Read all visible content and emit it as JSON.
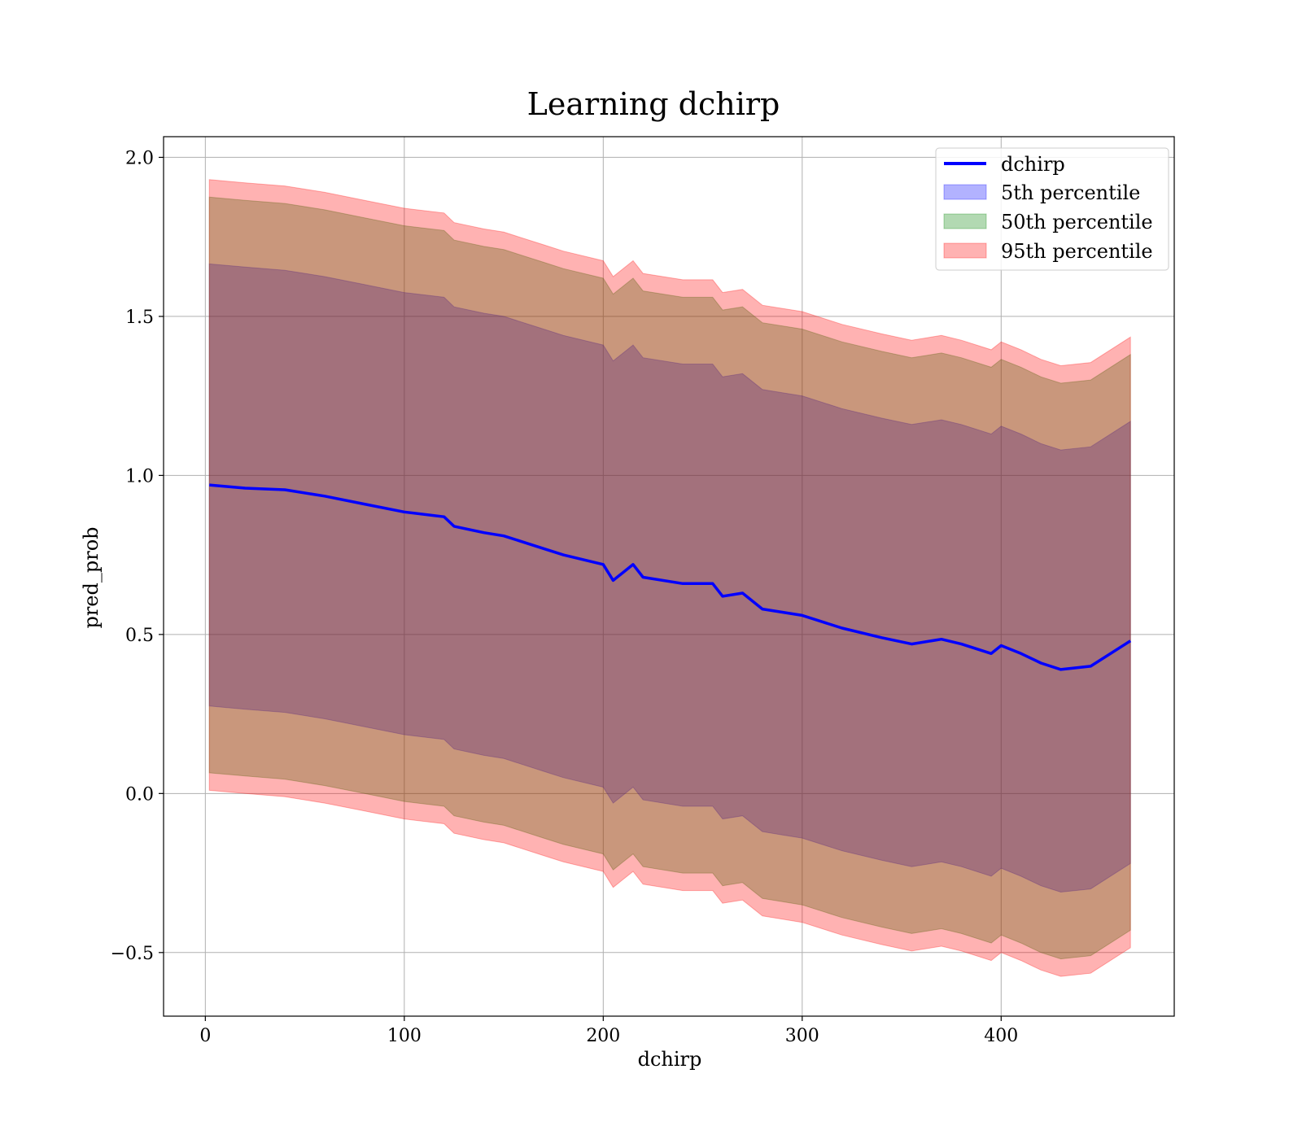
{
  "chart_data": {
    "type": "line",
    "title": "Learning dchirp",
    "xlabel": "dchirp",
    "ylabel": "pred_prob",
    "xlim": [
      -21,
      487
    ],
    "ylim": [
      -0.7,
      2.065
    ],
    "xticks": [
      0,
      100,
      200,
      300,
      400
    ],
    "yticks": [
      -0.5,
      0.0,
      0.5,
      1.0,
      1.5,
      2.0
    ],
    "ytick_labels": [
      "−0.5",
      "0.0",
      "0.5",
      "1.0",
      "1.5",
      "2.0"
    ],
    "grid": true,
    "legend": {
      "position": "top-right",
      "entries": [
        "dchirp",
        "5th percentile",
        "50th percentile",
        "95th percentile"
      ]
    },
    "x": [
      2,
      20,
      40,
      60,
      80,
      100,
      120,
      125,
      140,
      150,
      170,
      180,
      200,
      205,
      215,
      220,
      240,
      255,
      260,
      270,
      280,
      290,
      300,
      320,
      340,
      355,
      370,
      380,
      395,
      400,
      410,
      420,
      430,
      445,
      465
    ],
    "series": [
      {
        "name": "dchirp",
        "color": "#0000ff",
        "values": [
          0.97,
          0.96,
          0.955,
          0.935,
          0.91,
          0.885,
          0.87,
          0.84,
          0.82,
          0.81,
          0.77,
          0.75,
          0.72,
          0.67,
          0.72,
          0.68,
          0.66,
          0.66,
          0.62,
          0.63,
          0.58,
          0.57,
          0.56,
          0.52,
          0.49,
          0.47,
          0.485,
          0.47,
          0.44,
          0.465,
          0.44,
          0.41,
          0.39,
          0.4,
          0.48
        ]
      },
      {
        "name": "5th percentile",
        "color": "#0000ff",
        "lower": [
          0.275,
          0.265,
          0.255,
          0.235,
          0.21,
          0.185,
          0.17,
          0.14,
          0.12,
          0.11,
          0.07,
          0.05,
          0.02,
          -0.03,
          0.02,
          -0.02,
          -0.04,
          -0.04,
          -0.08,
          -0.07,
          -0.12,
          -0.13,
          -0.14,
          -0.18,
          -0.21,
          -0.23,
          -0.215,
          -0.23,
          -0.26,
          -0.235,
          -0.26,
          -0.29,
          -0.31,
          -0.3,
          -0.22
        ],
        "upper": [
          1.665,
          1.655,
          1.645,
          1.625,
          1.6,
          1.575,
          1.56,
          1.53,
          1.51,
          1.5,
          1.46,
          1.44,
          1.41,
          1.36,
          1.41,
          1.37,
          1.35,
          1.35,
          1.31,
          1.32,
          1.27,
          1.26,
          1.25,
          1.21,
          1.18,
          1.16,
          1.175,
          1.16,
          1.13,
          1.155,
          1.13,
          1.1,
          1.08,
          1.09,
          1.17
        ]
      },
      {
        "name": "50th percentile",
        "color": "#008000",
        "lower": [
          0.065,
          0.055,
          0.045,
          0.025,
          0.0,
          -0.025,
          -0.04,
          -0.07,
          -0.09,
          -0.1,
          -0.14,
          -0.16,
          -0.19,
          -0.24,
          -0.19,
          -0.23,
          -0.25,
          -0.25,
          -0.29,
          -0.28,
          -0.33,
          -0.34,
          -0.35,
          -0.39,
          -0.42,
          -0.44,
          -0.425,
          -0.44,
          -0.47,
          -0.445,
          -0.47,
          -0.5,
          -0.52,
          -0.51,
          -0.43
        ],
        "upper": [
          1.875,
          1.865,
          1.855,
          1.835,
          1.81,
          1.785,
          1.77,
          1.74,
          1.72,
          1.71,
          1.67,
          1.65,
          1.62,
          1.57,
          1.62,
          1.58,
          1.56,
          1.56,
          1.52,
          1.53,
          1.48,
          1.47,
          1.46,
          1.42,
          1.39,
          1.37,
          1.385,
          1.37,
          1.34,
          1.365,
          1.34,
          1.31,
          1.29,
          1.3,
          1.38
        ]
      },
      {
        "name": "95th percentile",
        "color": "#ff0000",
        "lower": [
          0.01,
          0.0,
          -0.01,
          -0.03,
          -0.055,
          -0.08,
          -0.095,
          -0.125,
          -0.145,
          -0.155,
          -0.195,
          -0.215,
          -0.245,
          -0.295,
          -0.245,
          -0.285,
          -0.305,
          -0.305,
          -0.345,
          -0.335,
          -0.385,
          -0.395,
          -0.405,
          -0.445,
          -0.475,
          -0.495,
          -0.48,
          -0.495,
          -0.525,
          -0.5,
          -0.525,
          -0.555,
          -0.575,
          -0.565,
          -0.485
        ],
        "upper": [
          1.93,
          1.92,
          1.91,
          1.89,
          1.865,
          1.84,
          1.825,
          1.795,
          1.775,
          1.765,
          1.725,
          1.705,
          1.675,
          1.625,
          1.675,
          1.635,
          1.615,
          1.615,
          1.575,
          1.585,
          1.535,
          1.525,
          1.515,
          1.475,
          1.445,
          1.425,
          1.44,
          1.425,
          1.395,
          1.42,
          1.395,
          1.365,
          1.345,
          1.355,
          1.435
        ]
      }
    ]
  }
}
